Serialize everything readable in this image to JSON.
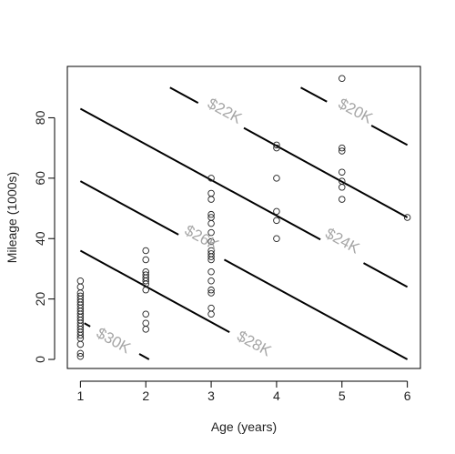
{
  "chart_data": {
    "type": "scatter",
    "title": "",
    "xlabel": "Age (years)",
    "ylabel": "Mileage (1000s)",
    "xlim": [
      0.8,
      6.2
    ],
    "ylim": [
      -3,
      97
    ],
    "x_ticks": [
      1,
      2,
      3,
      4,
      5,
      6
    ],
    "y_ticks": [
      0,
      20,
      40,
      60,
      80
    ],
    "grid": false,
    "legend": "none",
    "point_style": "open-circle",
    "colors": {
      "points": "#222222",
      "lines": "#000000",
      "contour_labels": "#a6a6a6"
    },
    "points": [
      {
        "x": 1,
        "y": 1
      },
      {
        "x": 1,
        "y": 2
      },
      {
        "x": 1,
        "y": 5
      },
      {
        "x": 1,
        "y": 7
      },
      {
        "x": 1,
        "y": 8
      },
      {
        "x": 1,
        "y": 9
      },
      {
        "x": 1,
        "y": 10
      },
      {
        "x": 1,
        "y": 11
      },
      {
        "x": 1,
        "y": 12
      },
      {
        "x": 1,
        "y": 13
      },
      {
        "x": 1,
        "y": 14
      },
      {
        "x": 1,
        "y": 15
      },
      {
        "x": 1,
        "y": 16
      },
      {
        "x": 1,
        "y": 17
      },
      {
        "x": 1,
        "y": 18
      },
      {
        "x": 1,
        "y": 19
      },
      {
        "x": 1,
        "y": 20
      },
      {
        "x": 1,
        "y": 21
      },
      {
        "x": 1,
        "y": 22
      },
      {
        "x": 1,
        "y": 24
      },
      {
        "x": 1,
        "y": 26
      },
      {
        "x": 2,
        "y": 10
      },
      {
        "x": 2,
        "y": 12
      },
      {
        "x": 2,
        "y": 15
      },
      {
        "x": 2,
        "y": 23
      },
      {
        "x": 2,
        "y": 25
      },
      {
        "x": 2,
        "y": 26
      },
      {
        "x": 2,
        "y": 27
      },
      {
        "x": 2,
        "y": 28
      },
      {
        "x": 2,
        "y": 29
      },
      {
        "x": 2,
        "y": 33
      },
      {
        "x": 2,
        "y": 36
      },
      {
        "x": 3,
        "y": 15
      },
      {
        "x": 3,
        "y": 17
      },
      {
        "x": 3,
        "y": 22
      },
      {
        "x": 3,
        "y": 23
      },
      {
        "x": 3,
        "y": 26
      },
      {
        "x": 3,
        "y": 29
      },
      {
        "x": 3,
        "y": 33
      },
      {
        "x": 3,
        "y": 34
      },
      {
        "x": 3,
        "y": 35
      },
      {
        "x": 3,
        "y": 36
      },
      {
        "x": 3,
        "y": 39
      },
      {
        "x": 3,
        "y": 42
      },
      {
        "x": 3,
        "y": 45
      },
      {
        "x": 3,
        "y": 47
      },
      {
        "x": 3,
        "y": 48
      },
      {
        "x": 3,
        "y": 53
      },
      {
        "x": 3,
        "y": 55
      },
      {
        "x": 3,
        "y": 60
      },
      {
        "x": 4,
        "y": 40
      },
      {
        "x": 4,
        "y": 46
      },
      {
        "x": 4,
        "y": 49
      },
      {
        "x": 4,
        "y": 60
      },
      {
        "x": 4,
        "y": 70
      },
      {
        "x": 4,
        "y": 71
      },
      {
        "x": 5,
        "y": 53
      },
      {
        "x": 5,
        "y": 57
      },
      {
        "x": 5,
        "y": 59
      },
      {
        "x": 5,
        "y": 62
      },
      {
        "x": 5,
        "y": 69
      },
      {
        "x": 5,
        "y": 70
      },
      {
        "x": 5,
        "y": 93
      },
      {
        "x": 6,
        "y": 47
      }
    ],
    "contour_lines": [
      {
        "label": "$20K",
        "from": {
          "x": 4.37,
          "y": 90
        },
        "to": {
          "x": 6.0,
          "y": 71
        },
        "gap": {
          "from_x": 4.77,
          "to_x": 5.45
        },
        "label_at": {
          "x": 5.2,
          "y": 82
        }
      },
      {
        "label": "$22K",
        "from": {
          "x": 2.37,
          "y": 90
        },
        "to": {
          "x": 6.0,
          "y": 47
        },
        "gap": {
          "from_x": 2.8,
          "to_x": 3.5
        },
        "label_at": {
          "x": 3.2,
          "y": 82
        }
      },
      {
        "label": "$24K",
        "from": {
          "x": 1.0,
          "y": 83
        },
        "to": {
          "x": 6.0,
          "y": 24
        },
        "gap": {
          "from_x": 4.67,
          "to_x": 5.33
        },
        "label_at": {
          "x": 5.0,
          "y": 39
        }
      },
      {
        "label": "$26K",
        "from": {
          "x": 1.0,
          "y": 59
        },
        "to": {
          "x": 6.0,
          "y": 0
        },
        "gap": {
          "from_x": 2.5,
          "to_x": 3.2
        },
        "label_at": {
          "x": 2.85,
          "y": 40
        }
      },
      {
        "label": "$28K",
        "from": {
          "x": 1.0,
          "y": 36
        },
        "to": {
          "x": 3.28,
          "y": 9
        },
        "gap": null,
        "label_at": {
          "x": 3.65,
          "y": 5
        }
      },
      {
        "label": "$30K",
        "from": {
          "x": 1.06,
          "y": 12
        },
        "to": {
          "x": 2.05,
          "y": 0
        },
        "gap": {
          "from_x": 1.15,
          "to_x": 1.9
        },
        "label_at": {
          "x": 1.5,
          "y": 6
        }
      }
    ]
  }
}
